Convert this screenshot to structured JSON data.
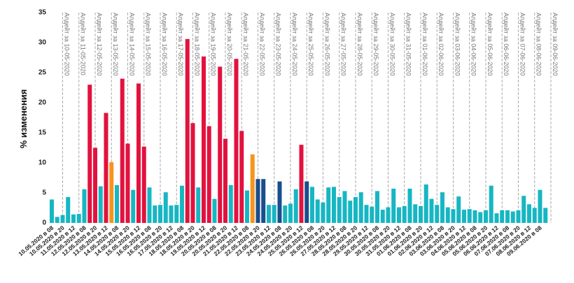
{
  "chart_data": {
    "type": "bar",
    "y_label": "% изменения",
    "ylim": [
      0,
      35
    ],
    "yticks": [
      0,
      5,
      10,
      15,
      20,
      25,
      30,
      35
    ],
    "grid": false,
    "categories": [
      "10.05.2020 в 08",
      null,
      "10.05.2020 в 20",
      null,
      "11.05.2020 в 12",
      null,
      "12.05.2020 в 08",
      null,
      "12.05.2020 в 20",
      null,
      "13.05.2020 в 12",
      null,
      "14.05.2020 в 08",
      null,
      "14.05.2020 в 20",
      null,
      "15.05.2020 в 12",
      null,
      "16.05.2020 в 08",
      null,
      "16.05.2020 в 20",
      null,
      "17.05.2020 в 12",
      null,
      "18.05.2020 в 08",
      null,
      "18.05.2020 в 20",
      null,
      "19.05.2020 в 12",
      null,
      "20.05.2020 в 08",
      null,
      "20.05.2020 в 20",
      null,
      "21.05.2020 в 12",
      null,
      "22.05.2020 в 08",
      null,
      "22.05.2020 в 20",
      null,
      "23.05.2020 в 12",
      null,
      "24.05.2020 в 08",
      null,
      "24.05.2020 в 20",
      null,
      "25.05.2020 в 12",
      null,
      "26.05.2020 в 08",
      null,
      "26.05.2020 в 20",
      null,
      "27.05.2020 в 12",
      null,
      "28.05.2020 в 08",
      null,
      "28.05.2020 в 20",
      null,
      "29.05.2020 в 12",
      null,
      "30.05.2020 в 08",
      null,
      "30.05.2020 в 20",
      null,
      "31.05.2020 в 12",
      null,
      "01.06.2020 в 08",
      null,
      "01.06.2020 в 20",
      null,
      "02.06.2020 в 12",
      null,
      "03.06.2020 в 08",
      null,
      "03.06.2020 в 20",
      null,
      "04.06.2020 в 12",
      null,
      "05.06.2020 в 08",
      null,
      "05.06.2020 в 20",
      null,
      "06.06.2020 в 12",
      null,
      "07.06.2020 в 08",
      null,
      "07.06.2020 в 20",
      null,
      "08.06.2020 в 12",
      null,
      "09.06.2020 в 08",
      null
    ],
    "values": [
      3.9,
      1.0,
      1.3,
      4.3,
      1.4,
      1.5,
      5.6,
      23.0,
      12.5,
      6.1,
      18.3,
      10.1,
      6.3,
      24.0,
      13.2,
      5.5,
      23.2,
      12.7,
      5.9,
      2.9,
      3.0,
      5.1,
      2.9,
      3.0,
      6.2,
      30.6,
      16.6,
      5.9,
      27.7,
      16.1,
      4.0,
      26.0,
      14.0,
      6.3,
      27.3,
      15.3,
      5.4,
      11.4,
      7.3,
      7.3,
      3.0,
      3.0,
      6.9,
      2.9,
      3.2,
      5.6,
      13.0,
      6.9,
      6.0,
      3.9,
      3.4,
      5.9,
      6.0,
      4.3,
      5.3,
      3.7,
      4.3,
      5.1,
      3.0,
      2.7,
      5.3,
      2.2,
      2.6,
      5.7,
      2.6,
      2.8,
      5.7,
      3.1,
      2.8,
      6.4,
      4.0,
      3.0,
      5.1,
      2.6,
      2.3,
      4.4,
      2.2,
      2.3,
      2.1,
      1.8,
      2.1,
      6.2,
      1.6,
      2.1,
      2.1,
      1.9,
      2.1,
      4.5,
      3.1,
      2.5,
      5.5,
      2.5
    ],
    "colors": [
      "#17b6c3",
      "#17b6c3",
      "#17b6c3",
      "#17b6c3",
      "#17b6c3",
      "#17b6c3",
      "#17b6c3",
      "#e2123e",
      "#e2123e",
      "#17b6c3",
      "#e2123e",
      "#f7941d",
      "#17b6c3",
      "#e2123e",
      "#e2123e",
      "#17b6c3",
      "#e2123e",
      "#e2123e",
      "#17b6c3",
      "#17b6c3",
      "#17b6c3",
      "#17b6c3",
      "#17b6c3",
      "#17b6c3",
      "#17b6c3",
      "#e2123e",
      "#e2123e",
      "#17b6c3",
      "#e2123e",
      "#e2123e",
      "#17b6c3",
      "#e2123e",
      "#e2123e",
      "#17b6c3",
      "#e2123e",
      "#e2123e",
      "#17b6c3",
      "#f7941d",
      "#1a4e8c",
      "#1a4e8c",
      "#17b6c3",
      "#17b6c3",
      "#1a4e8c",
      "#17b6c3",
      "#17b6c3",
      "#17b6c3",
      "#e2123e",
      "#1a4e8c",
      "#17b6c3",
      "#17b6c3",
      "#17b6c3",
      "#17b6c3",
      "#17b6c3",
      "#17b6c3",
      "#17b6c3",
      "#17b6c3",
      "#17b6c3",
      "#17b6c3",
      "#17b6c3",
      "#17b6c3",
      "#17b6c3",
      "#17b6c3",
      "#17b6c3",
      "#17b6c3",
      "#17b6c3",
      "#17b6c3",
      "#17b6c3",
      "#17b6c3",
      "#17b6c3",
      "#17b6c3",
      "#17b6c3",
      "#17b6c3",
      "#17b6c3",
      "#17b6c3",
      "#17b6c3",
      "#17b6c3",
      "#17b6c3",
      "#17b6c3",
      "#17b6c3",
      "#17b6c3",
      "#17b6c3",
      "#17b6c3",
      "#17b6c3",
      "#17b6c3",
      "#17b6c3",
      "#17b6c3",
      "#17b6c3",
      "#17b6c3",
      "#17b6c3",
      "#17b6c3",
      "#17b6c3",
      "#17b6c3"
    ],
    "annotations": [
      "Апдейт за 10-05-2020",
      "Апдейт за 11-05-2020",
      "Апдейт за 12-05-2020",
      "Апдейт за 13-05-2020",
      "Апдейт за 14-05-2020",
      "Апдейт за 15-05-2020",
      "Апдейт за 16-05-2020",
      "Апдейт за 17-05-2020",
      "Апдейт за 18-05-2020",
      "Апдейт за 19-05-2020",
      "Апдейт за 20-05-2020",
      "Апдейт за 21-05-2020",
      "Апдейт за 22-05-2020",
      "Апдейт за 23-05-2020",
      "Апдейт за 24-05-2020",
      "Апдейт за 25-05-2020",
      "Апдейт за 26-05-2020",
      "Апдейт за 27-05-2020",
      "Апдейт за 28-05-2020",
      "Апдейт за 29-05-2020",
      "Апдейт за 30-05-2020",
      "Апдейт за 31-05-2020",
      "Апдейт за 01-06-2020",
      "Апдейт за 02-06-2020",
      "Апдейт за 03-06-2020",
      "Апдейт за 04-06-2020",
      "Апдейт за 05-06-2020",
      "Апдейт за 06-06-2020",
      "Апдейт за 07-06-2020",
      "Апдейт за 08-06-2020",
      "Апдейт за 09-06-2020"
    ]
  }
}
